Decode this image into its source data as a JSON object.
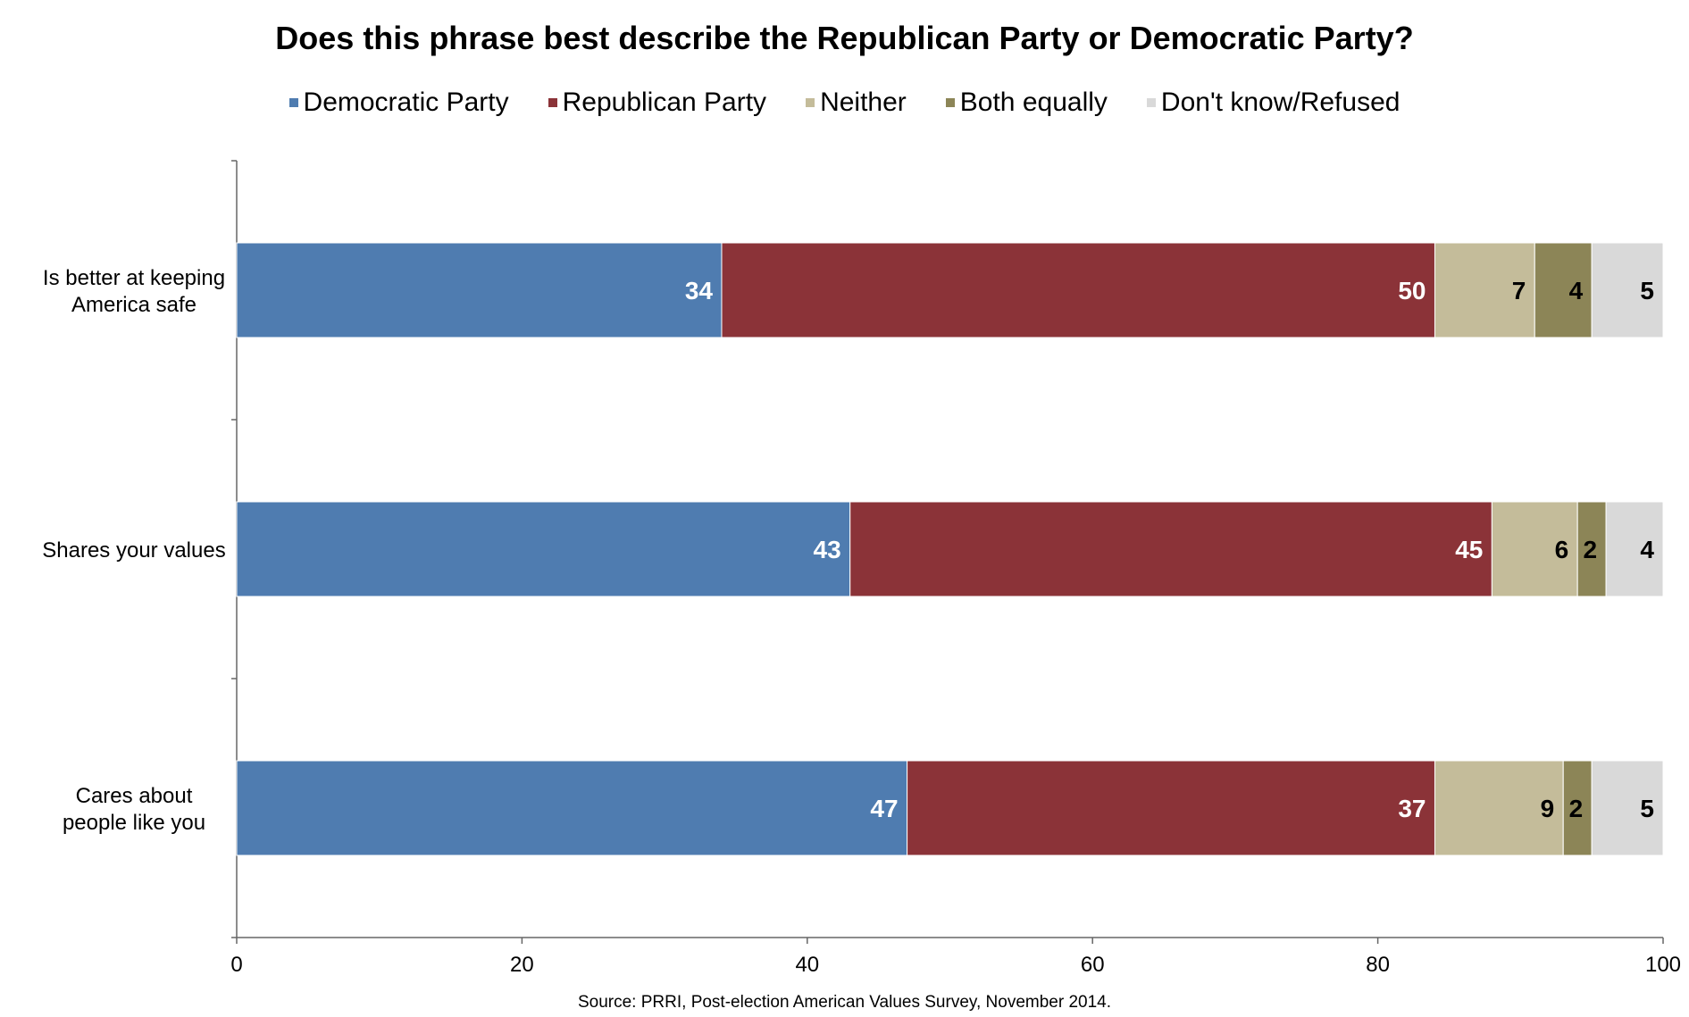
{
  "chart_data": {
    "type": "bar",
    "orientation": "horizontal",
    "stacked": true,
    "title": "Does this phrase best describe the Republican Party or Democratic Party?",
    "categories": [
      "Is better at keeping America safe",
      "Shares your values",
      "Cares about people like you"
    ],
    "category_lines": [
      [
        "Is better at keeping",
        "America safe"
      ],
      [
        "Shares your values"
      ],
      [
        "Cares about",
        "people like you"
      ]
    ],
    "series": [
      {
        "name": "Democratic Party",
        "color": "#4f7cb0",
        "label_color": "#ffffff",
        "values": [
          34,
          43,
          47
        ]
      },
      {
        "name": "Republican Party",
        "color": "#8b3338",
        "label_color": "#ffffff",
        "values": [
          50,
          45,
          37
        ]
      },
      {
        "name": "Neither",
        "color": "#c4bc9a",
        "label_color": "#000000",
        "values": [
          7,
          6,
          9
        ]
      },
      {
        "name": "Both equally",
        "color": "#8c8557",
        "label_color": "#000000",
        "values": [
          4,
          2,
          2
        ]
      },
      {
        "name": "Don't know/Refused",
        "color": "#d9d9d9",
        "label_color": "#000000",
        "values": [
          5,
          4,
          5
        ]
      }
    ],
    "xlim": [
      0,
      100
    ],
    "xticks": [
      0,
      20,
      40,
      60,
      80,
      100
    ],
    "xlabel": "",
    "ylabel": "",
    "grid": false,
    "legend_position": "top"
  },
  "source": "Source: PRRI, Post-election American Values Survey, November 2014."
}
